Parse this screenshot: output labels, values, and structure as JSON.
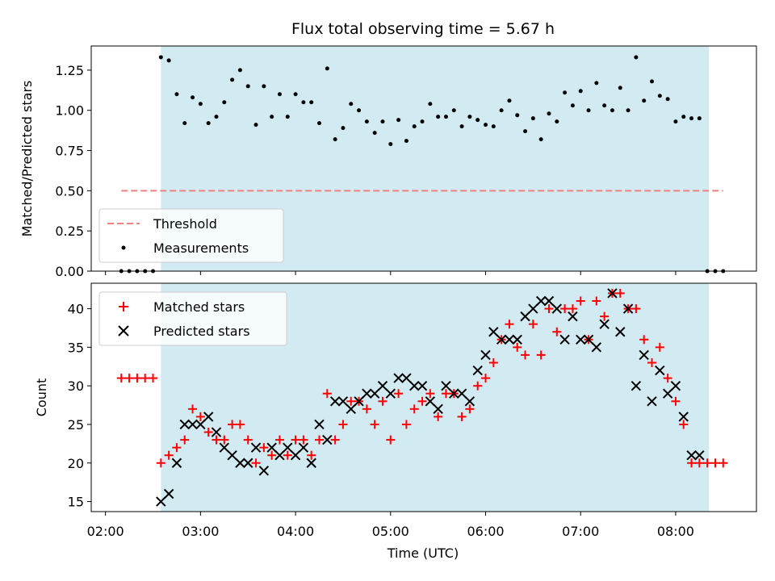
{
  "title": "Flux total observing time = 5.67 h",
  "chart_data": [
    {
      "type": "scatter",
      "panel": "top",
      "ylabel": "Matched/Predicted stars",
      "ylim": [
        0,
        1.4
      ],
      "xlim": [
        "01:51",
        "08:51"
      ],
      "yticks": [
        "0.00",
        "0.25",
        "0.50",
        "0.75",
        "1.00",
        "1.25"
      ],
      "shaded_span": [
        "02:35",
        "08:21"
      ],
      "shade_color": "#add8e6",
      "threshold": {
        "name": "Threshold",
        "value": 0.5,
        "x": [
          "02:10",
          "08:30"
        ],
        "color": "#f08080",
        "style": "dashed"
      },
      "series": [
        {
          "name": "Measurements",
          "color": "#000000",
          "points": [
            [
              "02:10",
              0
            ],
            [
              "02:15",
              0
            ],
            [
              "02:20",
              0
            ],
            [
              "02:25",
              0
            ],
            [
              "02:30",
              0
            ],
            [
              "02:35",
              1.33
            ],
            [
              "02:40",
              1.31
            ],
            [
              "02:45",
              1.1
            ],
            [
              "02:50",
              0.92
            ],
            [
              "02:55",
              1.08
            ],
            [
              "03:00",
              1.04
            ],
            [
              "03:05",
              0.92
            ],
            [
              "03:10",
              0.96
            ],
            [
              "03:15",
              1.05
            ],
            [
              "03:20",
              1.19
            ],
            [
              "03:25",
              1.25
            ],
            [
              "03:30",
              1.15
            ],
            [
              "03:35",
              0.91
            ],
            [
              "03:40",
              1.15
            ],
            [
              "03:45",
              0.96
            ],
            [
              "03:50",
              1.1
            ],
            [
              "03:55",
              0.96
            ],
            [
              "04:00",
              1.1
            ],
            [
              "04:05",
              1.05
            ],
            [
              "04:10",
              1.05
            ],
            [
              "04:15",
              0.92
            ],
            [
              "04:20",
              1.26
            ],
            [
              "04:25",
              0.82
            ],
            [
              "04:30",
              0.89
            ],
            [
              "04:35",
              1.04
            ],
            [
              "04:40",
              1.0
            ],
            [
              "04:45",
              0.93
            ],
            [
              "04:50",
              0.86
            ],
            [
              "04:55",
              0.93
            ],
            [
              "05:00",
              0.79
            ],
            [
              "05:05",
              0.94
            ],
            [
              "05:10",
              0.81
            ],
            [
              "05:15",
              0.9
            ],
            [
              "05:20",
              0.93
            ],
            [
              "05:25",
              1.04
            ],
            [
              "05:30",
              0.96
            ],
            [
              "05:35",
              0.96
            ],
            [
              "05:40",
              1.0
            ],
            [
              "05:45",
              0.9
            ],
            [
              "05:50",
              0.96
            ],
            [
              "05:55",
              0.94
            ],
            [
              "06:00",
              0.91
            ],
            [
              "06:05",
              0.9
            ],
            [
              "06:10",
              1.0
            ],
            [
              "06:15",
              1.06
            ],
            [
              "06:20",
              0.97
            ],
            [
              "06:25",
              0.87
            ],
            [
              "06:30",
              0.95
            ],
            [
              "06:35",
              0.82
            ],
            [
              "06:40",
              0.98
            ],
            [
              "06:45",
              0.93
            ],
            [
              "06:50",
              1.11
            ],
            [
              "06:55",
              1.03
            ],
            [
              "07:00",
              1.12
            ],
            [
              "07:05",
              1.0
            ],
            [
              "07:10",
              1.17
            ],
            [
              "07:15",
              1.03
            ],
            [
              "07:20",
              1.0
            ],
            [
              "07:25",
              1.14
            ],
            [
              "07:30",
              1.0
            ],
            [
              "07:35",
              1.33
            ],
            [
              "07:40",
              1.06
            ],
            [
              "07:45",
              1.18
            ],
            [
              "07:50",
              1.09
            ],
            [
              "07:55",
              1.07
            ],
            [
              "08:00",
              0.93
            ],
            [
              "08:05",
              0.96
            ],
            [
              "08:10",
              0.95
            ],
            [
              "08:15",
              0.95
            ],
            [
              "08:20",
              0
            ],
            [
              "08:25",
              0
            ],
            [
              "08:30",
              0
            ]
          ]
        }
      ],
      "legend": {
        "placement": "lower-left",
        "entries": [
          "Threshold",
          "Measurements"
        ]
      }
    },
    {
      "type": "scatter",
      "panel": "bottom",
      "xlabel": "Time (UTC)",
      "ylabel": "Count",
      "ylim": [
        13.7,
        43.3
      ],
      "xlim": [
        "01:51",
        "08:51"
      ],
      "xticks": [
        "02:00",
        "03:00",
        "04:00",
        "05:00",
        "06:00",
        "07:00",
        "08:00"
      ],
      "yticks": [
        "15",
        "20",
        "25",
        "30",
        "35",
        "40"
      ],
      "shaded_span": [
        "02:35",
        "08:21"
      ],
      "shade_color": "#add8e6",
      "series": [
        {
          "name": "Matched stars",
          "color": "#ff0000",
          "marker": "plus",
          "points": [
            [
              "02:10",
              31
            ],
            [
              "02:15",
              31
            ],
            [
              "02:20",
              31
            ],
            [
              "02:25",
              31
            ],
            [
              "02:30",
              31
            ],
            [
              "02:35",
              20
            ],
            [
              "02:40",
              21
            ],
            [
              "02:45",
              22
            ],
            [
              "02:50",
              23
            ],
            [
              "02:55",
              27
            ],
            [
              "03:00",
              26
            ],
            [
              "03:05",
              24
            ],
            [
              "03:10",
              23
            ],
            [
              "03:15",
              23
            ],
            [
              "03:20",
              25
            ],
            [
              "03:25",
              25
            ],
            [
              "03:30",
              23
            ],
            [
              "03:35",
              20
            ],
            [
              "03:40",
              22
            ],
            [
              "03:45",
              21
            ],
            [
              "03:50",
              23
            ],
            [
              "03:55",
              21
            ],
            [
              "04:00",
              23
            ],
            [
              "04:05",
              23
            ],
            [
              "04:10",
              21
            ],
            [
              "04:15",
              23
            ],
            [
              "04:20",
              29
            ],
            [
              "04:25",
              23
            ],
            [
              "04:30",
              25
            ],
            [
              "04:35",
              28
            ],
            [
              "04:40",
              28
            ],
            [
              "04:45",
              27
            ],
            [
              "04:50",
              25
            ],
            [
              "04:55",
              28
            ],
            [
              "05:00",
              23
            ],
            [
              "05:05",
              29
            ],
            [
              "05:10",
              25
            ],
            [
              "05:15",
              27
            ],
            [
              "05:20",
              28
            ],
            [
              "05:25",
              29
            ],
            [
              "05:30",
              26
            ],
            [
              "05:35",
              29
            ],
            [
              "05:40",
              29
            ],
            [
              "05:45",
              26
            ],
            [
              "05:50",
              27
            ],
            [
              "05:55",
              30
            ],
            [
              "06:00",
              31
            ],
            [
              "06:05",
              33
            ],
            [
              "06:10",
              36
            ],
            [
              "06:15",
              38
            ],
            [
              "06:20",
              35
            ],
            [
              "06:25",
              34
            ],
            [
              "06:30",
              38
            ],
            [
              "06:35",
              34
            ],
            [
              "06:40",
              40
            ],
            [
              "06:45",
              37
            ],
            [
              "06:50",
              40
            ],
            [
              "06:55",
              40
            ],
            [
              "07:00",
              41
            ],
            [
              "07:05",
              36
            ],
            [
              "07:10",
              41
            ],
            [
              "07:15",
              39
            ],
            [
              "07:20",
              42
            ],
            [
              "07:25",
              42
            ],
            [
              "07:30",
              40
            ],
            [
              "07:35",
              40
            ],
            [
              "07:40",
              36
            ],
            [
              "07:45",
              33
            ],
            [
              "07:50",
              35
            ],
            [
              "07:55",
              31
            ],
            [
              "08:00",
              28
            ],
            [
              "08:05",
              25
            ],
            [
              "08:10",
              20
            ],
            [
              "08:15",
              20
            ],
            [
              "08:20",
              20
            ],
            [
              "08:25",
              20
            ],
            [
              "08:30",
              20
            ]
          ]
        },
        {
          "name": "Predicted stars",
          "color": "#000000",
          "marker": "x",
          "points": [
            [
              "02:35",
              15
            ],
            [
              "02:40",
              16
            ],
            [
              "02:45",
              20
            ],
            [
              "02:50",
              25
            ],
            [
              "02:55",
              25
            ],
            [
              "03:00",
              25
            ],
            [
              "03:05",
              26
            ],
            [
              "03:10",
              24
            ],
            [
              "03:15",
              22
            ],
            [
              "03:20",
              21
            ],
            [
              "03:25",
              20
            ],
            [
              "03:30",
              20
            ],
            [
              "03:35",
              22
            ],
            [
              "03:40",
              19
            ],
            [
              "03:45",
              22
            ],
            [
              "03:50",
              21
            ],
            [
              "03:55",
              22
            ],
            [
              "04:00",
              21
            ],
            [
              "04:05",
              22
            ],
            [
              "04:10",
              20
            ],
            [
              "04:15",
              25
            ],
            [
              "04:20",
              23
            ],
            [
              "04:25",
              28
            ],
            [
              "04:30",
              28
            ],
            [
              "04:35",
              27
            ],
            [
              "04:40",
              28
            ],
            [
              "04:45",
              29
            ],
            [
              "04:50",
              29
            ],
            [
              "04:55",
              30
            ],
            [
              "05:00",
              29
            ],
            [
              "05:05",
              31
            ],
            [
              "05:10",
              31
            ],
            [
              "05:15",
              30
            ],
            [
              "05:20",
              30
            ],
            [
              "05:25",
              28
            ],
            [
              "05:30",
              27
            ],
            [
              "05:35",
              30
            ],
            [
              "05:40",
              29
            ],
            [
              "05:45",
              29
            ],
            [
              "05:50",
              28
            ],
            [
              "05:55",
              32
            ],
            [
              "06:00",
              34
            ],
            [
              "06:05",
              37
            ],
            [
              "06:10",
              36
            ],
            [
              "06:15",
              36
            ],
            [
              "06:20",
              36
            ],
            [
              "06:25",
              39
            ],
            [
              "06:30",
              40
            ],
            [
              "06:35",
              41
            ],
            [
              "06:40",
              41
            ],
            [
              "06:45",
              40
            ],
            [
              "06:50",
              36
            ],
            [
              "06:55",
              39
            ],
            [
              "07:00",
              36
            ],
            [
              "07:05",
              36
            ],
            [
              "07:10",
              35
            ],
            [
              "07:15",
              38
            ],
            [
              "07:20",
              42
            ],
            [
              "07:25",
              37
            ],
            [
              "07:30",
              40
            ],
            [
              "07:35",
              30
            ],
            [
              "07:40",
              34
            ],
            [
              "07:45",
              28
            ],
            [
              "07:50",
              32
            ],
            [
              "07:55",
              29
            ],
            [
              "08:00",
              30
            ],
            [
              "08:05",
              26
            ],
            [
              "08:10",
              21
            ],
            [
              "08:15",
              21
            ]
          ]
        }
      ],
      "legend": {
        "placement": "upper-left",
        "entries": [
          "Matched stars",
          "Predicted stars"
        ]
      }
    }
  ]
}
